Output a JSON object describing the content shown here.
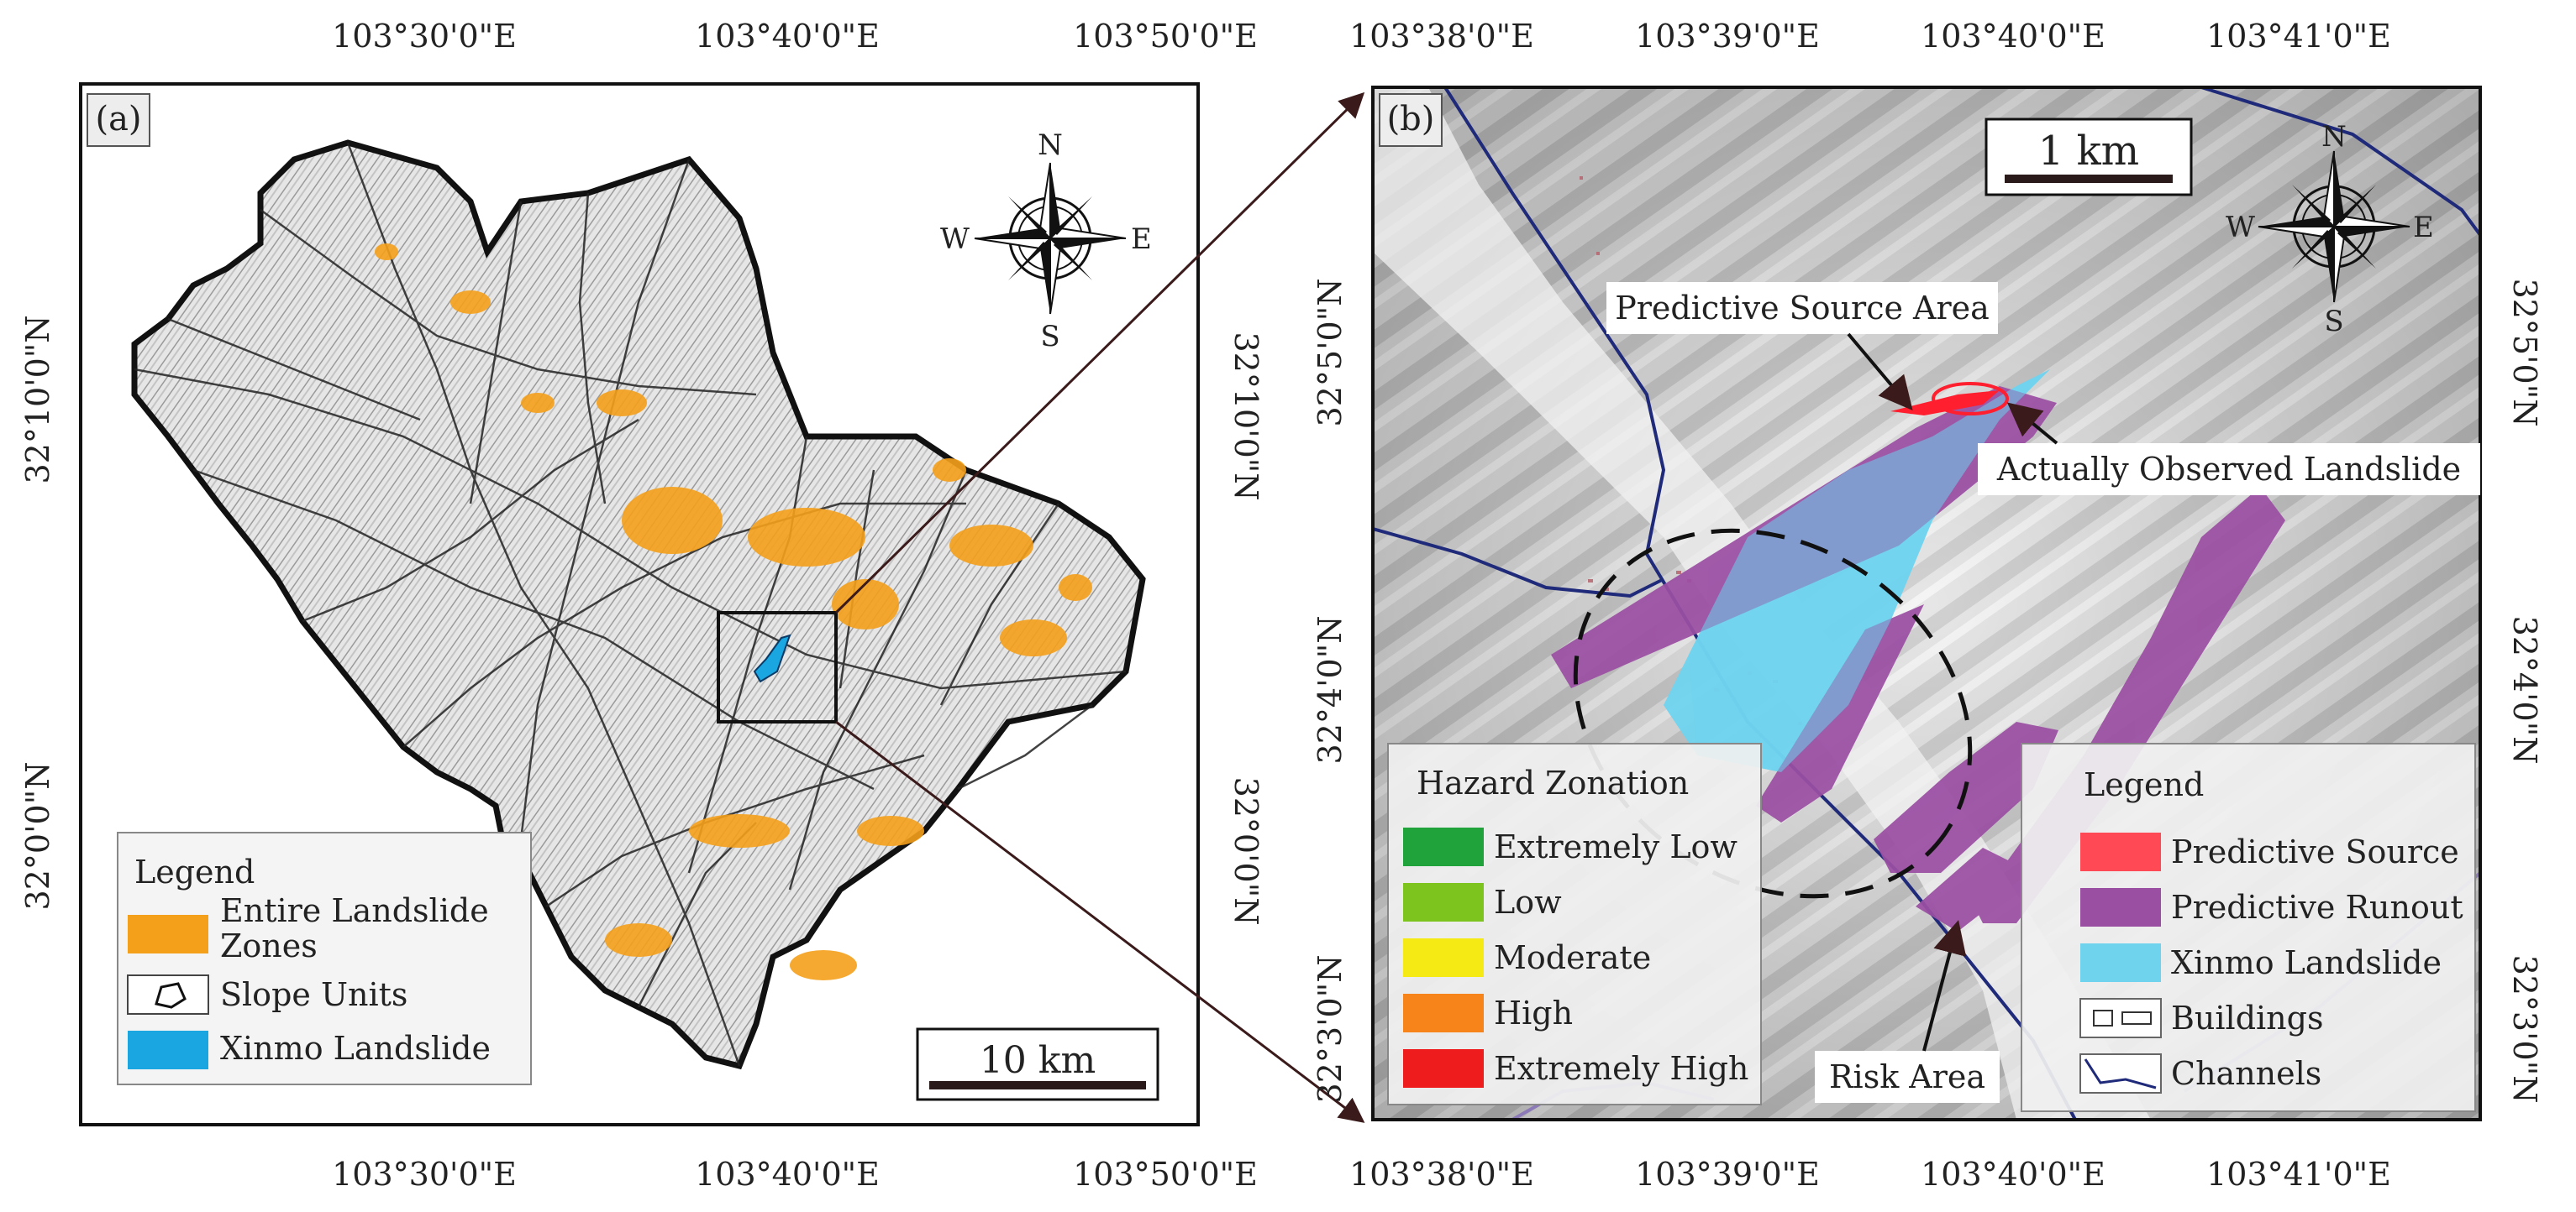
{
  "panel_a": {
    "tag": "(a)",
    "top_ticks": [
      "103°30'0\"E",
      "103°40'0\"E",
      "103°50'0\"E"
    ],
    "bottom_ticks": [
      "103°30'0\"E",
      "103°40'0\"E",
      "103°50'0\"E"
    ],
    "left_ticks": [
      "32°10'0\"N",
      "32°0'0\"N"
    ],
    "right_ticks": [
      "32°10'0\"N",
      "32°0'0\"N"
    ],
    "compass": {
      "n": "N",
      "s": "S",
      "e": "E",
      "w": "W"
    },
    "scale_bar": "10 km",
    "legend": {
      "title": "Legend",
      "items": [
        {
          "label": "Entire Landslide Zones",
          "color": "#f5a01a",
          "icon": "orange-swatch"
        },
        {
          "label": "Slope Units",
          "icon": "slope-unit-outline-icon"
        },
        {
          "label": "Xinmo Landslide",
          "color": "#1aa6e0",
          "icon": "blue-swatch"
        }
      ]
    }
  },
  "panel_b": {
    "tag": "(b)",
    "top_ticks": [
      "103°38'0\"E",
      "103°39'0\"E",
      "103°40'0\"E",
      "103°41'0\"E"
    ],
    "bottom_ticks": [
      "103°38'0\"E",
      "103°39'0\"E",
      "103°40'0\"E",
      "103°41'0\"E"
    ],
    "left_ticks": [
      "32°5'0\"N",
      "32°4'0\"N",
      "32°3'0\"N"
    ],
    "right_ticks": [
      "32°5'0\"N",
      "32°4'0\"N",
      "32°3'0\"N"
    ],
    "compass": {
      "n": "N",
      "s": "S",
      "e": "E",
      "w": "W"
    },
    "scale_bar": "1 km",
    "annotations": {
      "source": "Predictive Source Area",
      "observed": "Actually Observed Landslide",
      "risk": "Risk Area"
    },
    "hazard_legend": {
      "title": "Hazard Zonation",
      "items": [
        {
          "label": "Extremely Low",
          "color": "#1fa33a"
        },
        {
          "label": "Low",
          "color": "#7dc41f"
        },
        {
          "label": "Moderate",
          "color": "#f5ea14"
        },
        {
          "label": "High",
          "color": "#f7841a"
        },
        {
          "label": "Extremely High",
          "color": "#ee1c1c"
        }
      ]
    },
    "legend": {
      "title": "Legend",
      "items": [
        {
          "label": "Predictive Source",
          "color": "#ff4a55",
          "icon": "red-swatch"
        },
        {
          "label": "Predictive Runout",
          "color": "#9b4fa3",
          "icon": "purple-swatch"
        },
        {
          "label": "Xinmo Landslide",
          "color": "#6fd3ee",
          "icon": "cyan-swatch"
        },
        {
          "label": "Buildings",
          "icon": "buildings-icon"
        },
        {
          "label": "Channels",
          "icon": "channel-line-icon"
        }
      ]
    }
  }
}
